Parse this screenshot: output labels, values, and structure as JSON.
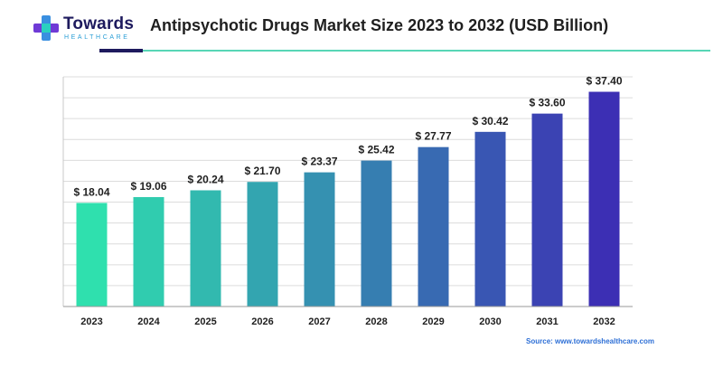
{
  "header": {
    "logo_name": "Towards",
    "logo_sub": "HEALTHCARE",
    "title": "Antipsychotic Drugs Market Size 2023 to 2032 (USD Billion)"
  },
  "footer": {
    "source": "Source: www.towardshealthcare.com"
  },
  "colors": {
    "brand_dark": "#1e1a5e",
    "brand_teal": "#58d6b6",
    "bar_start": "#2fe0ae",
    "bar_end": "#3c2fb4"
  },
  "chart_data": {
    "type": "bar",
    "title": "Antipsychotic Drugs Market Size 2023 to 2032 (USD Billion)",
    "categories": [
      "2023",
      "2024",
      "2025",
      "2026",
      "2027",
      "2028",
      "2029",
      "2030",
      "2031",
      "2032"
    ],
    "values": [
      18.04,
      19.06,
      20.24,
      21.7,
      23.37,
      25.42,
      27.77,
      30.42,
      33.6,
      37.4
    ],
    "value_labels": [
      "$ 18.04",
      "$ 19.06",
      "$ 20.24",
      "$ 21.70",
      "$ 23.37",
      "$ 25.42",
      "$ 27.77",
      "$ 30.42",
      "$ 33.60",
      "$ 37.40"
    ],
    "xlabel": "",
    "ylabel": "",
    "ylim": [
      0,
      40
    ],
    "grid": true,
    "legend": "none"
  }
}
